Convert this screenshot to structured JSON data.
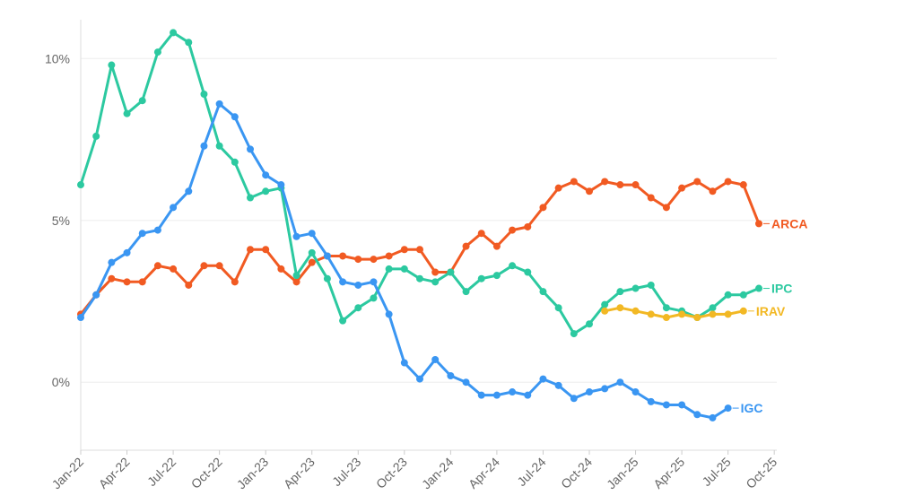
{
  "chart_data": {
    "type": "line",
    "x": [
      "2022-01",
      "2022-02",
      "2022-03",
      "2022-04",
      "2022-05",
      "2022-06",
      "2022-07",
      "2022-08",
      "2022-09",
      "2022-10",
      "2022-11",
      "2022-12",
      "2023-01",
      "2023-02",
      "2023-03",
      "2023-04",
      "2023-05",
      "2023-06",
      "2023-07",
      "2023-08",
      "2023-09",
      "2023-10",
      "2023-11",
      "2023-12",
      "2024-01",
      "2024-02",
      "2024-03",
      "2024-04",
      "2024-05",
      "2024-06",
      "2024-07",
      "2024-08",
      "2024-09",
      "2024-10",
      "2024-11",
      "2024-12",
      "2025-01",
      "2025-02",
      "2025-03",
      "2025-04",
      "2025-05",
      "2025-06",
      "2025-07",
      "2025-08",
      "2025-09"
    ],
    "x_ticks": [
      "Jan-22",
      "Apr-22",
      "Jul-22",
      "Oct-22",
      "Jan-23",
      "Apr-23",
      "Jul-23",
      "Oct-23",
      "Jan-24",
      "Apr-24",
      "Jul-24",
      "Oct-24",
      "Jan-25",
      "Apr-25",
      "Jul-25",
      "Oct-25"
    ],
    "y_ticks": [
      {
        "value": 0,
        "label": "0%"
      },
      {
        "value": 5,
        "label": "5%"
      },
      {
        "value": 10,
        "label": "10%"
      }
    ],
    "ylim": [
      -2.1,
      11.2
    ],
    "grid": "horizontal",
    "series": [
      {
        "name": "ARCA",
        "color": "#F15A22",
        "values": [
          2.1,
          2.7,
          3.2,
          3.1,
          3.1,
          3.6,
          3.5,
          3.0,
          3.6,
          3.6,
          3.1,
          4.1,
          4.1,
          3.5,
          3.1,
          3.7,
          3.9,
          3.9,
          3.8,
          3.8,
          3.9,
          4.1,
          4.1,
          3.4,
          3.4,
          4.2,
          4.6,
          4.2,
          4.7,
          4.8,
          5.4,
          6.0,
          6.2,
          5.9,
          6.2,
          6.1,
          6.1,
          5.7,
          5.4,
          6.0,
          6.2,
          5.9,
          6.2,
          6.1,
          4.9
        ]
      },
      {
        "name": "IPC",
        "color": "#2CC9A0",
        "values": [
          6.1,
          7.6,
          9.8,
          8.3,
          8.7,
          10.2,
          10.8,
          10.5,
          8.9,
          7.3,
          6.8,
          5.7,
          5.9,
          6.0,
          3.3,
          4.0,
          3.2,
          1.9,
          2.3,
          2.6,
          3.5,
          3.5,
          3.2,
          3.1,
          3.4,
          2.8,
          3.2,
          3.3,
          3.6,
          3.4,
          2.8,
          2.3,
          1.5,
          1.8,
          2.4,
          2.8,
          2.9,
          3.0,
          2.3,
          2.2,
          2.0,
          2.3,
          2.7,
          2.7,
          2.9
        ]
      },
      {
        "name": "IGC",
        "color": "#3A96F2",
        "values": [
          2.0,
          2.7,
          3.7,
          4.0,
          4.6,
          4.7,
          5.4,
          5.9,
          7.3,
          8.6,
          8.2,
          7.2,
          6.4,
          6.1,
          4.5,
          4.6,
          3.9,
          3.1,
          3.0,
          3.1,
          2.1,
          0.6,
          0.1,
          0.7,
          0.2,
          0.0,
          -0.4,
          -0.4,
          -0.3,
          -0.4,
          0.1,
          -0.1,
          -0.5,
          -0.3,
          -0.2,
          0.0,
          -0.3,
          -0.6,
          -0.7,
          -0.7,
          -1.0,
          -1.1,
          -0.8,
          null,
          null
        ]
      },
      {
        "name": "IRAV",
        "color": "#F2B824",
        "values": [
          null,
          null,
          null,
          null,
          null,
          null,
          null,
          null,
          null,
          null,
          null,
          null,
          null,
          null,
          null,
          null,
          null,
          null,
          null,
          null,
          null,
          null,
          null,
          null,
          null,
          null,
          null,
          null,
          null,
          null,
          null,
          null,
          null,
          null,
          2.2,
          2.3,
          2.2,
          2.1,
          2.0,
          2.1,
          2.0,
          2.1,
          2.1,
          2.2,
          null
        ]
      }
    ]
  }
}
